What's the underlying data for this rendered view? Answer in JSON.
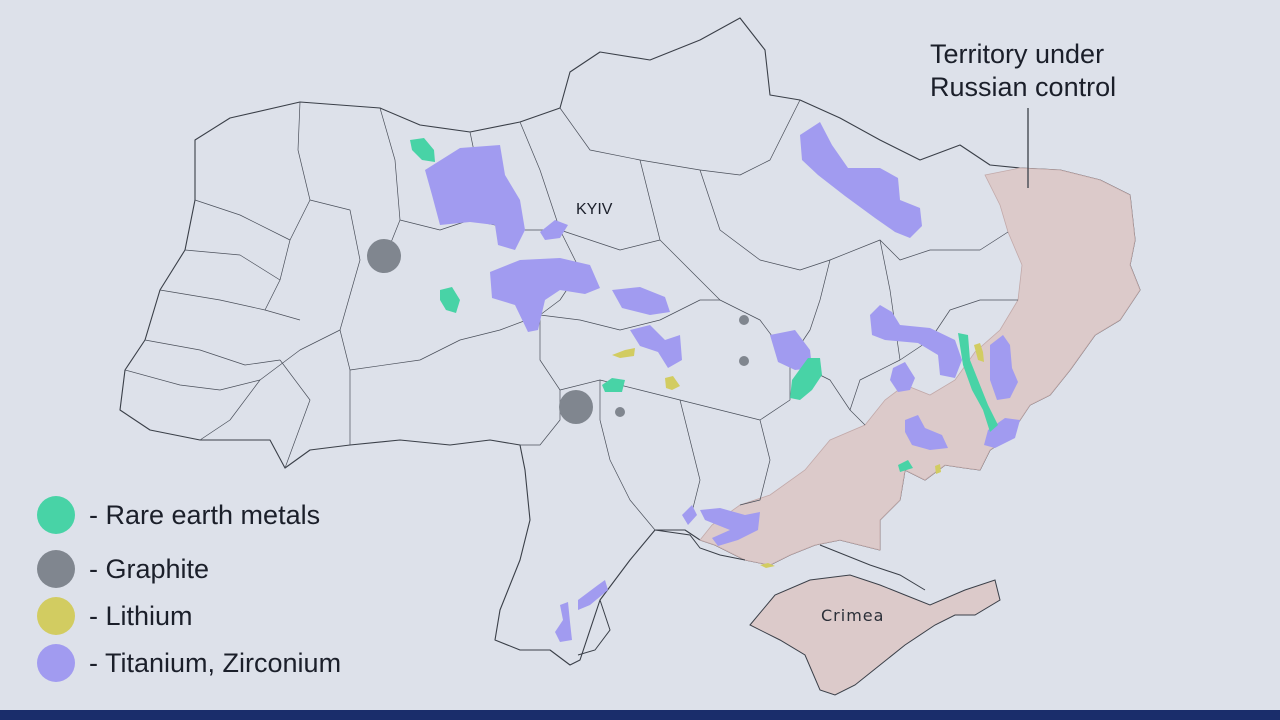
{
  "map": {
    "capital_label": "KYIV",
    "crimea_label": "Crimea",
    "occupied_annotation": "Territory under\nRussian control"
  },
  "legend": {
    "items": [
      {
        "label": "- Rare earth metals",
        "color": "#48d3a6",
        "icon": "rare-earth-swatch"
      },
      {
        "label": "- Graphite",
        "color": "#80868f",
        "icon": "graphite-swatch"
      },
      {
        "label": "- Lithium",
        "color": "#d2cc61",
        "icon": "lithium-swatch"
      },
      {
        "label": "- Titanium, Zirconium",
        "color": "#a19bf0",
        "icon": "titanium-zirconium-swatch"
      }
    ]
  },
  "colors": {
    "background": "#dde1ea",
    "occupied_fill": "#dccaca",
    "border_line": "#3a3f48",
    "bottom_bar": "#1a2d6b"
  }
}
